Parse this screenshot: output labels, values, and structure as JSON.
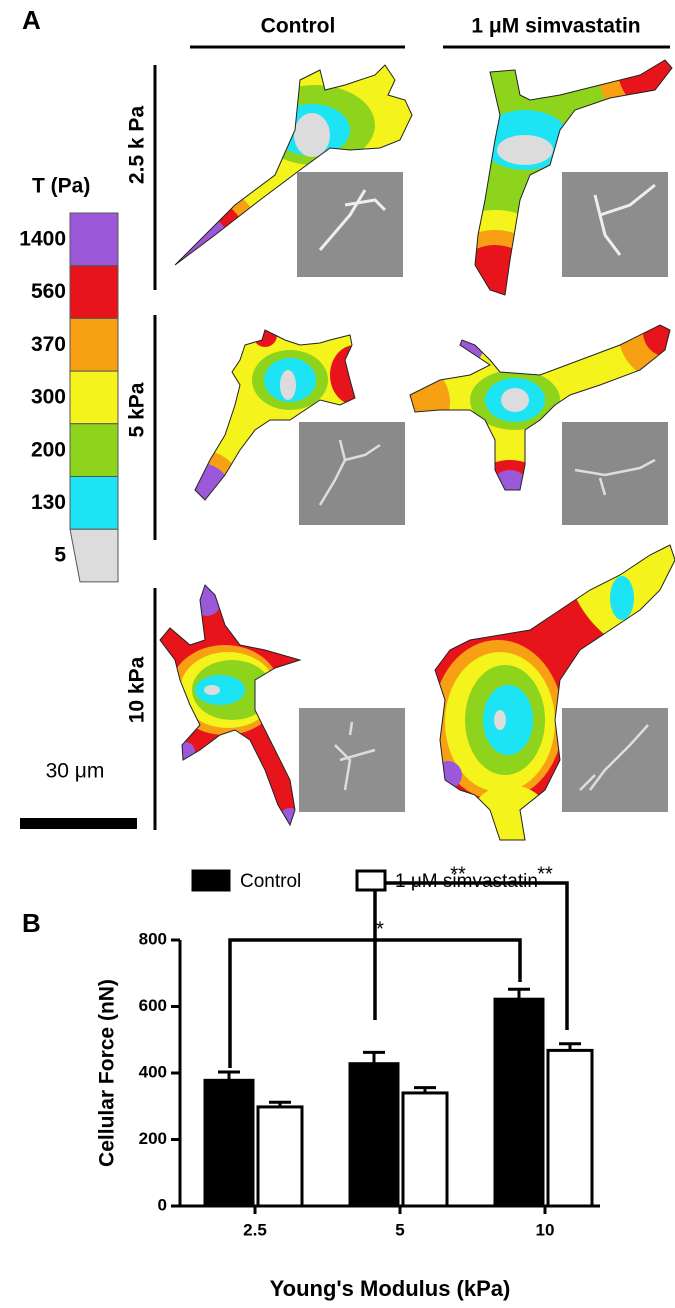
{
  "panel_a": {
    "label": "A",
    "columns": [
      "Control",
      "1 μM simvastatin"
    ],
    "rows": [
      "2.5 k Pa",
      "5 kPa",
      "10 kPa"
    ],
    "legend_title": "T (Pa)",
    "levels": [
      {
        "label": 1400,
        "color": "#9b59d9"
      },
      {
        "label": 560,
        "color": "#e8141c"
      },
      {
        "label": 370,
        "color": "#f7a014"
      },
      {
        "label": 300,
        "color": "#f4f31c"
      },
      {
        "label": 200,
        "color": "#8ed41c"
      },
      {
        "label": 130,
        "color": "#1ce4f4"
      },
      {
        "label": 5,
        "color": "#dcdcdc"
      }
    ],
    "scale_bar": "30 μm"
  },
  "chart_data": {
    "type": "bar",
    "label": "B",
    "ylabel": "Cellular Force (nN)",
    "xlabel": "Young's Modulus (kPa)",
    "categories": [
      "2.5",
      "5",
      "10"
    ],
    "series": [
      {
        "name": "Control",
        "color": "#000000",
        "values": [
          378,
          428,
          622
        ],
        "errors": [
          25,
          34,
          30
        ]
      },
      {
        "name": "1 μM simvastatin",
        "color": "#ffffff",
        "values": [
          298,
          340,
          468
        ],
        "errors": [
          14,
          16,
          20
        ]
      }
    ],
    "ylim": [
      0,
      800
    ],
    "yticks": [
      0,
      200,
      400,
      600,
      800
    ],
    "annotations": [
      "*",
      "**",
      "**"
    ]
  }
}
